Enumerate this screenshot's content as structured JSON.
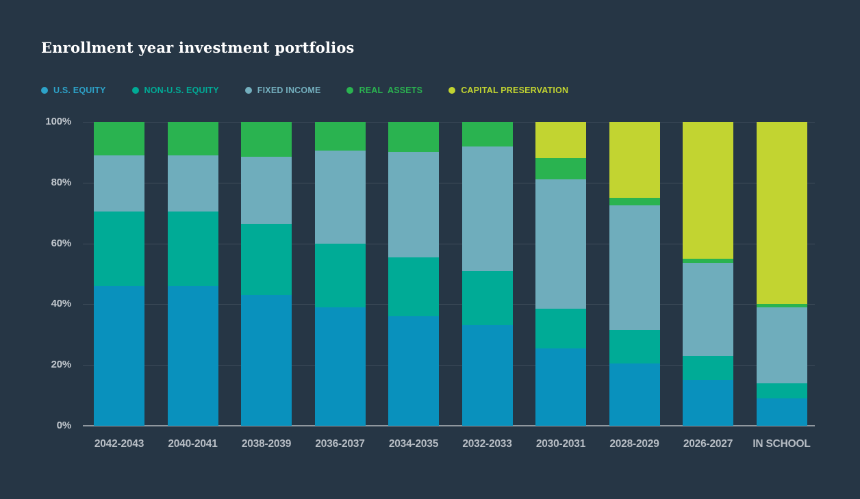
{
  "title": "Enrollment year investment portfolios",
  "colors": {
    "background": "#263645",
    "title_text": "#ffffff",
    "grid_line": "#3f4d5b",
    "baseline": "#90989f",
    "axis_label_text": "#c3c9cf",
    "category_label_text": "#b8bec5"
  },
  "legend": {
    "items": [
      {
        "id": "us_equity",
        "label": "U.S. EQUITY",
        "color": "#2da3c9"
      },
      {
        "id": "non_us_equity",
        "label": "NON-U.S. EQUITY",
        "color": "#00ab96"
      },
      {
        "id": "fixed_income",
        "label": "FIXED INCOME",
        "color": "#74afbe"
      },
      {
        "id": "real_assets",
        "label": "REAL  ASSETS",
        "color": "#2ab350"
      },
      {
        "id": "capital_preservation",
        "label": "CAPITAL PRESERVATION",
        "color": "#c2d431"
      }
    ]
  },
  "chart_data": {
    "type": "bar",
    "stacked": true,
    "title": "Enrollment year investment portfolios",
    "xlabel": "",
    "ylabel": "",
    "ylim": [
      0,
      100
    ],
    "yticks": [
      0,
      20,
      40,
      60,
      80,
      100
    ],
    "ytick_suffix": "%",
    "grid": true,
    "legend_position": "top",
    "categories": [
      "2042-2043",
      "2040-2041",
      "2038-2039",
      "2036-2037",
      "2034-2035",
      "2032-2033",
      "2030-2031",
      "2028-2029",
      "2026-2027",
      "IN SCHOOL"
    ],
    "series": [
      {
        "id": "us_equity",
        "name": "U.S. EQUITY",
        "color": "#0991bd",
        "values": [
          46,
          46,
          43,
          39,
          36,
          33,
          25.5,
          20.5,
          15,
          9
        ]
      },
      {
        "id": "non_us_equity",
        "name": "NON-U.S. EQUITY",
        "color": "#00ab96",
        "values": [
          24.5,
          24.5,
          23.5,
          21,
          19.5,
          18,
          13,
          11,
          8,
          5
        ]
      },
      {
        "id": "fixed_income",
        "name": "FIXED INCOME",
        "color": "#6fadbc",
        "values": [
          18.5,
          18.5,
          22,
          30.5,
          34.5,
          41,
          42.5,
          41,
          30.5,
          25
        ]
      },
      {
        "id": "real_assets",
        "name": "REAL ASSETS",
        "color": "#2ab350",
        "values": [
          11,
          11,
          11.5,
          9.5,
          10,
          8,
          7,
          2.5,
          1.5,
          1
        ]
      },
      {
        "id": "capital_preservation",
        "name": "CAPITAL PRESERVATION",
        "color": "#c2d431",
        "values": [
          0,
          0,
          0,
          0,
          0,
          0,
          12,
          25,
          45,
          60
        ]
      }
    ]
  }
}
